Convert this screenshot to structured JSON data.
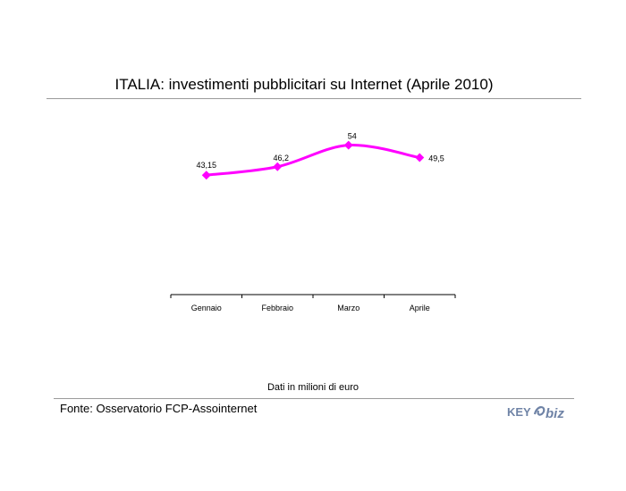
{
  "header": {
    "title": "ITALIA: investimenti pubblicitari su Internet (Aprile 2010)"
  },
  "footer": {
    "units_note": "Dati in milioni di euro",
    "source": "Fonte: Osservatorio FCP-Assointernet",
    "logo_text_left": "KEY",
    "logo_text_right": "biz"
  },
  "colors": {
    "series": "#ff00ff",
    "axis": "#000000",
    "logo": "#6f83a6"
  },
  "chart_data": {
    "type": "line",
    "title": "ITALIA: investimenti pubblicitari su Internet (Aprile 2010)",
    "categories": [
      "Gennaio",
      "Febbraio",
      "Marzo",
      "Aprile"
    ],
    "series": [
      {
        "values": [
          43.15,
          46.2,
          54,
          49.5
        ],
        "labels": [
          "43,15",
          "46,2",
          "54",
          "49,5"
        ]
      }
    ],
    "ylim": [
      0,
      100
    ],
    "grid": false,
    "legend": "none"
  }
}
